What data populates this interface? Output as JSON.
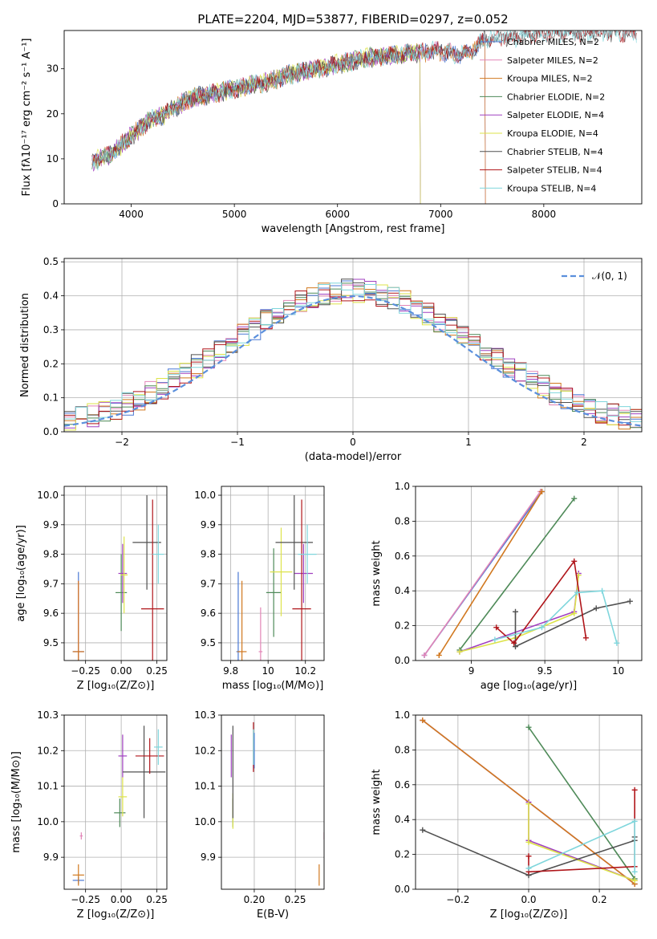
{
  "figure": {
    "title": "PLATE=2204, MJD=53877, FIBERID=0297, z=0.052"
  },
  "chart_data": [
    {
      "type": "line",
      "panel": "spectrum",
      "xlabel": "wavelength [Angstrom, rest frame]",
      "ylabel": "Flux [fλ10⁻¹⁷ erg cm⁻² s⁻¹ A⁻¹]",
      "xlim": [
        3350,
        8950
      ],
      "ylim": [
        0,
        38.5
      ],
      "xticks": [
        4000,
        5000,
        6000,
        7000,
        8000
      ],
      "yticks": [
        0,
        10,
        20,
        30
      ],
      "grid": false,
      "legend_position": "right",
      "continuum_x": [
        3600,
        3700,
        3800,
        3900,
        4000,
        4100,
        4200,
        4300,
        4400,
        4500,
        4600,
        4700,
        4800,
        4900,
        5000,
        5100,
        5200,
        5300,
        5400,
        5500,
        5600,
        5700,
        5800,
        5900,
        6000,
        6100,
        6200,
        6300,
        6400,
        6500,
        6600,
        6700,
        6800,
        6900,
        7000,
        7100,
        7200,
        7300,
        7400,
        7500,
        7600,
        7700,
        7800,
        7900,
        8000,
        8100,
        8200,
        8300,
        8400,
        8500,
        8600
      ],
      "continuum_y": [
        9,
        10,
        11,
        13,
        15,
        17,
        19,
        19.5,
        21,
        22.5,
        23.5,
        24,
        24.5,
        25,
        25.5,
        26,
        26.5,
        27,
        27.5,
        28.5,
        29,
        29.5,
        30,
        30.5,
        31,
        31.5,
        32,
        32.5,
        32.5,
        33,
        33,
        33.5,
        33.5,
        34,
        34,
        33.5,
        33,
        34,
        36,
        37,
        37,
        37,
        37.5,
        38,
        38,
        38,
        38,
        38,
        38,
        38,
        38
      ],
      "series": [
        {
          "name": "Chabrier MILES, N_SSP=2",
          "color": "#4a78d4",
          "end_x": 7430
        },
        {
          "name": "Salpeter MILES, N_SSP=2",
          "color": "#e285b7",
          "end_x": 7430
        },
        {
          "name": "Kroupa MILES, N_SSP=2",
          "color": "#d1781f",
          "end_x": 7430
        },
        {
          "name": "Chabrier ELODIE, N_SSP=2",
          "color": "#4e8a58",
          "end_x": 6800
        },
        {
          "name": "Salpeter ELODIE, N_SSP=4",
          "color": "#a040c0",
          "end_x": 6800
        },
        {
          "name": "Kroupa ELODIE, N_SSP=4",
          "color": "#dde34a",
          "end_x": 6800
        },
        {
          "name": "Chabrier STELIB, N_SSP=4",
          "color": "#505050",
          "end_x": 8900
        },
        {
          "name": "Salpeter STELIB, N_SSP=4",
          "color": "#b0151a",
          "end_x": 8900
        },
        {
          "name": "Kroupa STELIB, N_SSP=4",
          "color": "#7fd6dc",
          "end_x": 8900
        }
      ]
    },
    {
      "type": "line",
      "panel": "residuals",
      "xlabel": "(data-model)/error",
      "ylabel": "Normed distribution",
      "xlim": [
        -2.5,
        2.5
      ],
      "ylim": [
        0,
        0.51
      ],
      "xticks": [
        -2,
        -1,
        0,
        1,
        2
      ],
      "yticks": [
        0.0,
        0.1,
        0.2,
        0.3,
        0.4,
        0.5
      ],
      "grid": true,
      "legend_position": "top-right",
      "reference": {
        "name": "𝒩(0, 1)",
        "color": "#5a8fdc",
        "mean": 0,
        "sigma": 1
      },
      "bin_width": 0.1
    },
    {
      "type": "scatter",
      "panel": "age_vs_Z",
      "xlabel": "Z [log₁₀(Z/Z⊙)]",
      "ylabel": "age  [log₁₀(age/yr)]",
      "xlim": [
        -0.4,
        0.32
      ],
      "ylim": [
        9.44,
        10.03
      ],
      "xticks": [
        -0.25,
        0.0,
        0.25
      ],
      "yticks": [
        9.5,
        9.6,
        9.7,
        9.8,
        9.9,
        10.0
      ],
      "xtick_labels": [
        "−0.25",
        "0.00",
        "0.25"
      ],
      "grid": true,
      "points": [
        {
          "color": "#4a78d4",
          "x": -0.3,
          "y": 9.47,
          "ex": 0.04,
          "ey": 0.27
        },
        {
          "color": "#e285b7",
          "x": -0.3,
          "y": 9.47,
          "ex": 0.035,
          "ey": 0.24
        },
        {
          "color": "#d1781f",
          "x": -0.3,
          "y": 9.47,
          "ex": 0.04,
          "ey": 0.24
        },
        {
          "color": "#4e8a58",
          "x": 0.0,
          "y": 9.67,
          "ex": 0.04,
          "ey": 0.13
        },
        {
          "color": "#a040c0",
          "x": 0.01,
          "y": 9.735,
          "ex": 0.03,
          "ey": 0.1
        },
        {
          "color": "#dde34a",
          "x": 0.02,
          "y": 9.73,
          "ex": 0.025,
          "ey": 0.13
        },
        {
          "color": "#505050",
          "x": 0.18,
          "y": 9.84,
          "ex": 0.1,
          "ey": 0.16
        },
        {
          "color": "#b0151a",
          "x": 0.22,
          "y": 9.615,
          "ex": 0.08,
          "ey": 0.37
        },
        {
          "color": "#7fd6dc",
          "x": 0.26,
          "y": 9.8,
          "ex": 0.04,
          "ey": 0.1
        }
      ]
    },
    {
      "type": "scatter",
      "panel": "age_vs_mass",
      "xlabel": "mass [log₁₀(M/M⊙)]",
      "ylabel": "",
      "xlim": [
        9.75,
        10.3
      ],
      "ylim": [
        9.44,
        10.03
      ],
      "xticks": [
        9.8,
        10.0,
        10.2
      ],
      "yticks": [
        9.5,
        9.6,
        9.7,
        9.8,
        9.9,
        10.0
      ],
      "grid": true,
      "points": [
        {
          "color": "#4a78d4",
          "x": 9.84,
          "y": 9.47,
          "ex": 0.01,
          "ey": 0.27
        },
        {
          "color": "#e285b7",
          "x": 9.96,
          "y": 9.47,
          "ex": 0.01,
          "ey": 0.15
        },
        {
          "color": "#d1781f",
          "x": 9.86,
          "y": 9.47,
          "ex": 0.025,
          "ey": 0.24
        },
        {
          "color": "#4e8a58",
          "x": 10.03,
          "y": 9.67,
          "ex": 0.04,
          "ey": 0.15
        },
        {
          "color": "#a040c0",
          "x": 10.19,
          "y": 9.735,
          "ex": 0.05,
          "ey": 0.1
        },
        {
          "color": "#dde34a",
          "x": 10.07,
          "y": 9.74,
          "ex": 0.06,
          "ey": 0.15
        },
        {
          "color": "#505050",
          "x": 10.14,
          "y": 9.84,
          "ex": 0.1,
          "ey": 0.16
        },
        {
          "color": "#b0151a",
          "x": 10.18,
          "y": 9.615,
          "ex": 0.05,
          "ey": 0.37
        },
        {
          "color": "#7fd6dc",
          "x": 10.21,
          "y": 9.8,
          "ex": 0.05,
          "ey": 0.1
        }
      ]
    },
    {
      "type": "line",
      "panel": "weights_vs_age",
      "xlabel": "age  [log₁₀(age/yr)]",
      "ylabel": "mass weight",
      "xlim": [
        8.62,
        10.16
      ],
      "ylim": [
        0,
        1.0
      ],
      "xticks": [
        9.0,
        9.5,
        10.0
      ],
      "yticks": [
        0.0,
        0.2,
        0.4,
        0.6,
        0.8,
        1.0
      ],
      "grid": true,
      "series": [
        {
          "color": "#4a78d4",
          "x": [
            8.68,
            9.48
          ],
          "y": [
            0.03,
            0.97
          ]
        },
        {
          "color": "#e285b7",
          "x": [
            8.68,
            9.47
          ],
          "y": [
            0.03,
            0.97
          ]
        },
        {
          "color": "#d1781f",
          "x": [
            8.78,
            9.48
          ],
          "y": [
            0.03,
            0.97
          ]
        },
        {
          "color": "#4e8a58",
          "x": [
            8.92,
            9.7
          ],
          "y": [
            0.06,
            0.93
          ]
        },
        {
          "color": "#a040c0",
          "x": [
            8.92,
            9.7,
            9.73
          ],
          "y": [
            0.05,
            0.28,
            0.5
          ]
        },
        {
          "color": "#dde34a",
          "x": [
            8.92,
            9.3,
            9.7,
            9.73
          ],
          "y": [
            0.05,
            0.13,
            0.27,
            0.49
          ]
        },
        {
          "color": "#505050",
          "x": [
            9.3,
            9.3,
            9.85,
            10.08
          ],
          "y": [
            0.28,
            0.08,
            0.3,
            0.34
          ]
        },
        {
          "color": "#b0151a",
          "x": [
            9.17,
            9.29,
            9.7,
            9.78
          ],
          "y": [
            0.19,
            0.1,
            0.57,
            0.13
          ]
        },
        {
          "color": "#7fd6dc",
          "x": [
            9.16,
            9.48,
            9.72,
            9.89,
            9.99
          ],
          "y": [
            0.12,
            0.19,
            0.39,
            0.4,
            0.1
          ]
        }
      ]
    },
    {
      "type": "scatter",
      "panel": "mass_vs_Z",
      "xlabel": "Z [log₁₀(Z/Z⊙)]",
      "ylabel": "mass [log₁₀(M/M⊙)]",
      "xlim": [
        -0.4,
        0.32
      ],
      "ylim": [
        9.81,
        10.3
      ],
      "xticks": [
        -0.25,
        0.0,
        0.25
      ],
      "yticks": [
        9.9,
        10.0,
        10.1,
        10.2,
        10.3
      ],
      "xtick_labels": [
        "−0.25",
        "0.00",
        "0.25"
      ],
      "grid": true,
      "points": [
        {
          "color": "#4a78d4",
          "x": -0.3,
          "y": 9.835,
          "ex": 0.04,
          "ey": 0.01
        },
        {
          "color": "#e285b7",
          "x": -0.28,
          "y": 9.96,
          "ex": 0.01,
          "ey": 0.01
        },
        {
          "color": "#d1781f",
          "x": -0.3,
          "y": 9.85,
          "ex": 0.04,
          "ey": 0.03
        },
        {
          "color": "#4e8a58",
          "x": -0.01,
          "y": 10.025,
          "ex": 0.04,
          "ey": 0.04
        },
        {
          "color": "#a040c0",
          "x": 0.01,
          "y": 10.185,
          "ex": 0.03,
          "ey": 0.06
        },
        {
          "color": "#dde34a",
          "x": 0.01,
          "y": 10.07,
          "ex": 0.03,
          "ey": 0.055
        },
        {
          "color": "#505050",
          "x": 0.16,
          "y": 10.14,
          "ex": 0.15,
          "ey": 0.13
        },
        {
          "color": "#b0151a",
          "x": 0.2,
          "y": 10.185,
          "ex": 0.1,
          "ey": 0.05
        },
        {
          "color": "#7fd6dc",
          "x": 0.26,
          "y": 10.21,
          "ex": 0.03,
          "ey": 0.05
        }
      ]
    },
    {
      "type": "scatter",
      "panel": "mass_vs_EBV",
      "xlabel": "E(B-V)",
      "ylabel": "",
      "xlim": [
        0.16,
        0.285
      ],
      "ylim": [
        9.81,
        10.3
      ],
      "xticks": [
        0.2,
        0.25
      ],
      "xtick_labels": [
        "0.20",
        "0.25"
      ],
      "yticks": [
        9.9,
        10.0,
        10.1,
        10.2,
        10.3
      ],
      "grid": true,
      "points": [
        {
          "color": "#4a78d4",
          "x": 0.2,
          "y": 10.2,
          "ex": 0.0,
          "ey": 0.05
        },
        {
          "color": "#e285b7",
          "x": 0.285,
          "y": 9.96,
          "ex": 0.0,
          "ey": 0.01
        },
        {
          "color": "#d1781f",
          "x": 0.279,
          "y": 9.85,
          "ex": 0.0,
          "ey": 0.03
        },
        {
          "color": "#4e8a58",
          "x": 0.174,
          "y": 10.025,
          "ex": 0.0,
          "ey": 0.04
        },
        {
          "color": "#a040c0",
          "x": 0.172,
          "y": 10.185,
          "ex": 0.0,
          "ey": 0.06
        },
        {
          "color": "#dde34a",
          "x": 0.174,
          "y": 10.03,
          "ex": 0.0,
          "ey": 0.05
        },
        {
          "color": "#505050",
          "x": 0.174,
          "y": 10.14,
          "ex": 0.0,
          "ey": 0.13
        },
        {
          "color": "#b0151a",
          "x": 0.199,
          "y": 10.21,
          "ex": 0.0,
          "ey": 0.07
        },
        {
          "color": "#7fd6dc",
          "x": 0.199,
          "y": 10.21,
          "ex": 0.0,
          "ey": 0.05
        }
      ]
    },
    {
      "type": "line",
      "panel": "weights_vs_Z",
      "xlabel": "Z [log₁₀(Z/Z⊙)]",
      "ylabel": "mass weight",
      "xlim": [
        -0.32,
        0.32
      ],
      "ylim": [
        0,
        1.0
      ],
      "xticks": [
        -0.2,
        0.0,
        0.2
      ],
      "xtick_labels": [
        "−0.2",
        "0.0",
        "0.2"
      ],
      "yticks": [
        0.0,
        0.2,
        0.4,
        0.6,
        0.8,
        1.0
      ],
      "grid": true,
      "series": [
        {
          "color": "#4a78d4",
          "x": [
            -0.3,
            0.3
          ],
          "y": [
            0.97,
            0.03
          ]
        },
        {
          "color": "#e285b7",
          "x": [
            -0.3,
            0.3
          ],
          "y": [
            0.97,
            0.03
          ]
        },
        {
          "color": "#d1781f",
          "x": [
            -0.3,
            0.3
          ],
          "y": [
            0.97,
            0.03
          ]
        },
        {
          "color": "#4e8a58",
          "x": [
            0.0,
            0.3
          ],
          "y": [
            0.93,
            0.06
          ]
        },
        {
          "color": "#a040c0",
          "x": [
            0.0,
            0.0,
            0.3
          ],
          "y": [
            0.5,
            0.28,
            0.05
          ]
        },
        {
          "color": "#dde34a",
          "x": [
            0.0,
            0.0,
            0.3,
            0.3
          ],
          "y": [
            0.49,
            0.27,
            0.05,
            0.05
          ]
        },
        {
          "color": "#505050",
          "x": [
            -0.3,
            0.0,
            0.3,
            0.3
          ],
          "y": [
            0.34,
            0.08,
            0.28,
            0.3
          ]
        },
        {
          "color": "#b0151a",
          "x": [
            0.3,
            0.3,
            0.0,
            0.0
          ],
          "y": [
            0.57,
            0.13,
            0.1,
            0.19
          ]
        },
        {
          "color": "#7fd6dc",
          "x": [
            0.0,
            0.3,
            0.3
          ],
          "y": [
            0.12,
            0.39,
            0.1
          ]
        }
      ]
    }
  ]
}
